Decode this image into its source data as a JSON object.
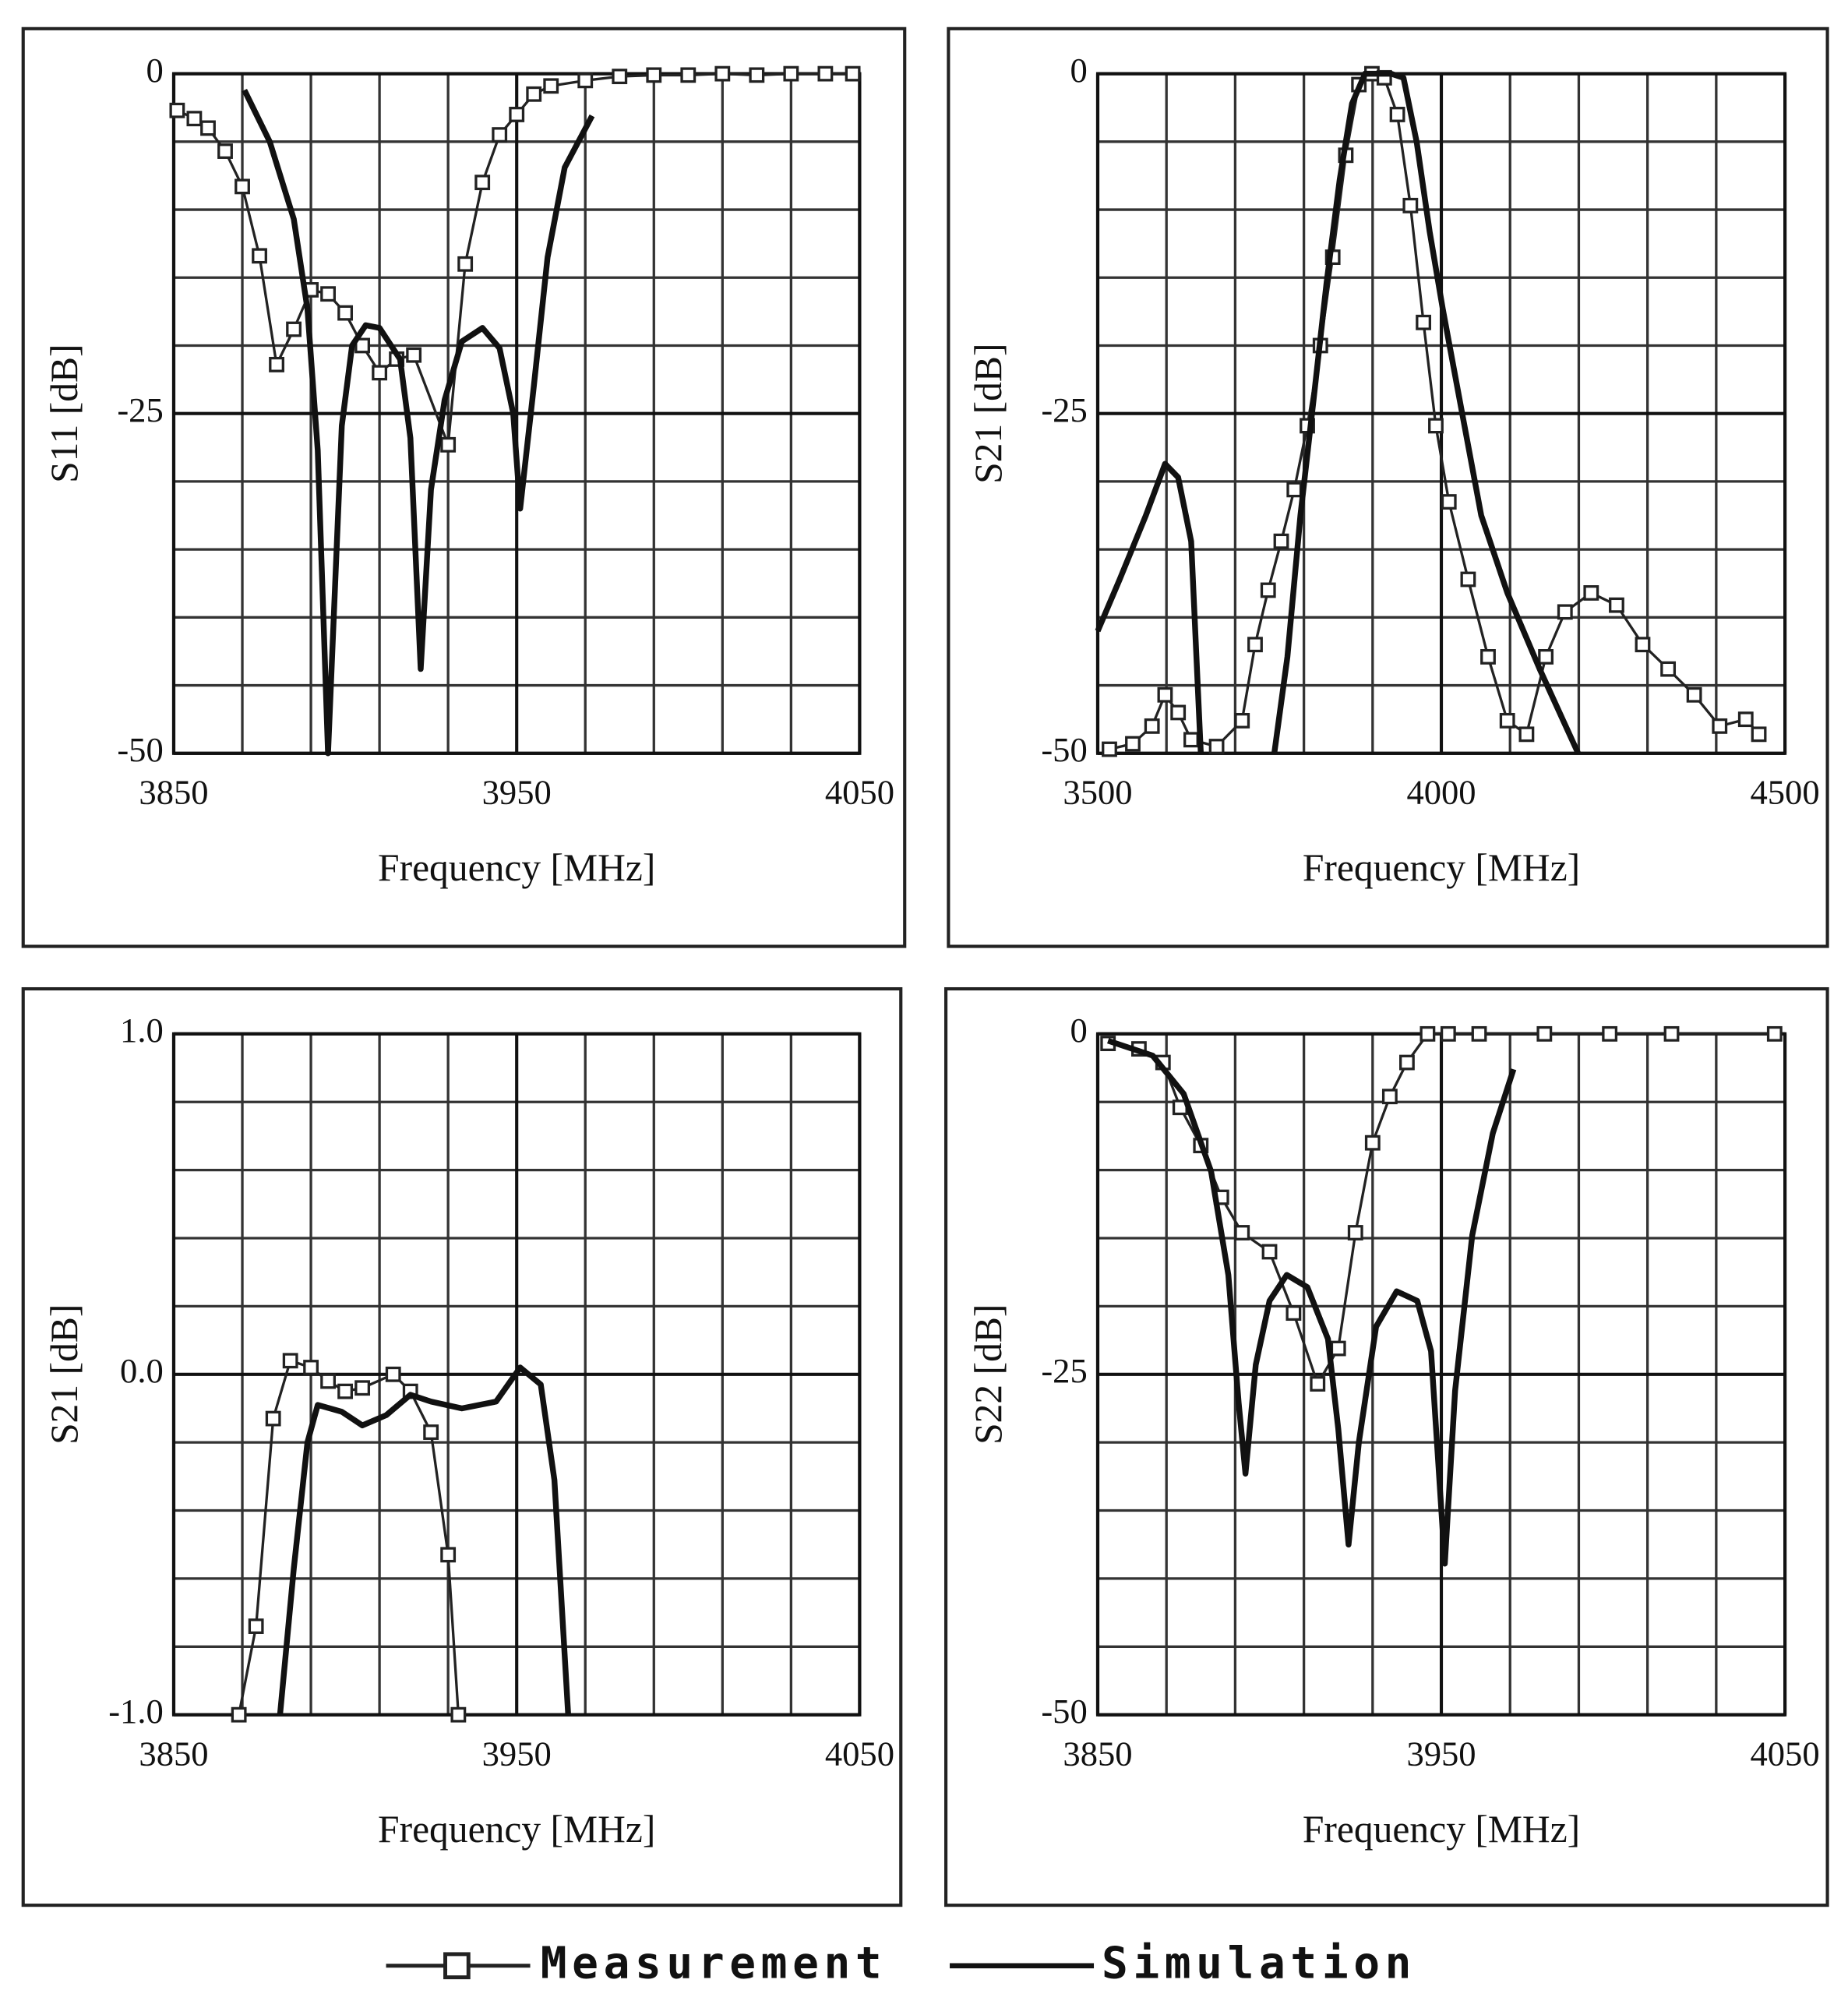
{
  "legend": [
    "Measurement",
    "Simulation"
  ],
  "chart_data": [
    {
      "type": "line",
      "xlabel": "Frequency [MHz]",
      "ylabel": "S11 [dB]",
      "xlim": [
        3850,
        4050
      ],
      "xticks": [
        3850,
        3950,
        4050
      ],
      "ylim": [
        -50,
        0
      ],
      "yticks": [
        0,
        -25,
        -50
      ],
      "grid": true,
      "series": [
        {
          "color": "#222222",
          "marker": "square",
          "x": [
            3851,
            3856,
            3860,
            3865,
            3870,
            3875,
            3880,
            3885,
            3890,
            3895,
            3900,
            3905,
            3910,
            3915,
            3920,
            3930,
            3935,
            3940,
            3945,
            3950,
            3955,
            3960,
            3970,
            3980,
            3990,
            4000,
            4010,
            4020,
            4030,
            4040,
            4048
          ],
          "values": [
            -2.7,
            -3.3,
            -4,
            -5.7,
            -8.3,
            -13.4,
            -21.4,
            -18.8,
            -15.9,
            -16.2,
            -17.6,
            -20,
            -22,
            -21,
            -20.7,
            -27.3,
            -14,
            -8,
            -4.5,
            -3,
            -1.5,
            -0.9,
            -0.5,
            -0.2,
            -0.1,
            -0.1,
            0,
            -0.1,
            0,
            0,
            0
          ]
        },
        {
          "color": "#111111",
          "marker": "none",
          "x": [
            3870.6,
            3878,
            3885,
            3889,
            3892,
            3895,
            3899,
            3902,
            3906,
            3910,
            3916,
            3919,
            3922,
            3925,
            3929,
            3934,
            3940,
            3945,
            3949,
            3951,
            3955,
            3959,
            3964,
            3972
          ],
          "values": [
            -1.2,
            -5,
            -10.7,
            -17.3,
            -27.7,
            -50,
            -25.9,
            -20,
            -18.5,
            -18.7,
            -21,
            -26.8,
            -43.8,
            -30.6,
            -24,
            -19.7,
            -18.7,
            -20.2,
            -25,
            -32,
            -23,
            -13.5,
            -6.9,
            -3.1
          ]
        }
      ]
    },
    {
      "type": "line",
      "xlabel": "Frequency [MHz]",
      "ylabel": "S21 [dB]",
      "xlim": [
        3500,
        4500
      ],
      "xticks": [
        3500,
        4000,
        4500
      ],
      "ylim": [
        -50,
        0
      ],
      "yticks": [
        0,
        -25,
        -50
      ],
      "grid": true,
      "series": [
        {
          "color": "#222222",
          "marker": "square",
          "x": [
            3517,
            3551,
            3579,
            3598,
            3617,
            3636,
            3673,
            3710,
            3729,
            3748,
            3767,
            3786,
            3805,
            3824,
            3842,
            3861,
            3880,
            3899,
            3917,
            3936,
            3955,
            3974,
            3992,
            4011,
            4039,
            4068,
            4096,
            4124,
            4152,
            4180,
            4218,
            4255,
            4293,
            4330,
            4368,
            4405,
            4443,
            4462
          ],
          "values": [
            -49.7,
            -49.3,
            -48,
            -45.7,
            -47,
            -49,
            -49.5,
            -47.6,
            -42,
            -38,
            -34.4,
            -30.6,
            -25.9,
            -20,
            -13.5,
            -6,
            -0.8,
            0,
            -0.3,
            -3,
            -9.7,
            -18.3,
            -25.9,
            -31.5,
            -37.2,
            -42.9,
            -47.6,
            -48.6,
            -42.9,
            -39.6,
            -38.2,
            -39.1,
            -42,
            -43.8,
            -45.7,
            -48,
            -47.5,
            -48.6
          ]
        },
        {
          "color": "#111111",
          "marker": "none",
          "x": [
            3500,
            3532,
            3570,
            3598,
            3617,
            3636,
            3650,
            null,
            3757,
            3776,
            3795,
            3814,
            3833,
            3852,
            3870,
            3889,
            3927,
            3945,
            3964,
            3983,
            4002,
            4030,
            4058,
            4096,
            4143,
            4199
          ],
          "values": [
            -41,
            -37.2,
            -32.5,
            -28.7,
            -29.7,
            -34.4,
            -50,
            null,
            -50,
            -42.9,
            -32.5,
            -24,
            -15.4,
            -7.8,
            -2.2,
            0,
            0,
            -0.3,
            -5,
            -11.6,
            -17.3,
            -24.9,
            -32.5,
            -38.2,
            -43.8,
            -50
          ]
        }
      ]
    },
    {
      "type": "line",
      "xlabel": "Frequency [MHz]",
      "ylabel": "S21 [dB]",
      "xlim": [
        3850,
        4050
      ],
      "xticks": [
        3850,
        3950,
        4050
      ],
      "ylim": [
        -1,
        1
      ],
      "yticks": [
        {
          "value": 1,
          "label": "1.0"
        },
        {
          "value": 0,
          "label": "0.0"
        },
        {
          "value": -1,
          "label": "-1.0"
        }
      ],
      "grid": true,
      "series": [
        {
          "color": "#222222",
          "marker": "square",
          "x": [
            3869,
            3874,
            3879,
            3884,
            3890,
            3895,
            3900,
            3905,
            3914,
            3919,
            3925,
            3930,
            3933
          ],
          "values": [
            -1,
            -0.74,
            -0.13,
            0.04,
            0.02,
            -0.02,
            -0.05,
            -0.04,
            0,
            -0.05,
            -0.17,
            -0.53,
            -1
          ]
        },
        {
          "color": "#111111",
          "marker": "none",
          "x": [
            3881,
            3885,
            3889,
            3892,
            3899,
            3905,
            3912,
            3919,
            3925,
            3934,
            3944,
            3951,
            3957,
            3961,
            3965
          ],
          "values": [
            -1,
            -0.57,
            -0.2,
            -0.09,
            -0.11,
            -0.15,
            -0.12,
            -0.06,
            -0.08,
            -0.1,
            -0.08,
            0.02,
            -0.03,
            -0.31,
            -1
          ]
        }
      ]
    },
    {
      "type": "line",
      "xlabel": "Frequency [MHz]",
      "ylabel": "S22 [dB]",
      "xlim": [
        3850,
        4050
      ],
      "xticks": [
        3850,
        3950,
        4050
      ],
      "ylim": [
        -50,
        0
      ],
      "yticks": [
        0,
        -25,
        -50
      ],
      "grid": true,
      "series": [
        {
          "color": "#222222",
          "marker": "square",
          "x": [
            3853,
            3862,
            3869,
            3874,
            3880,
            3886,
            3892,
            3900,
            3907,
            3914,
            3920,
            3925,
            3930,
            3935,
            3940,
            3946,
            3952,
            3961,
            3980,
            3999,
            4017,
            4047
          ],
          "values": [
            -0.7,
            -1.1,
            -2.1,
            -5.4,
            -8.2,
            -12,
            -14.6,
            -16,
            -20.5,
            -25.7,
            -23.1,
            -14.6,
            -8,
            -4.6,
            -2.1,
            0,
            0,
            0,
            0,
            0,
            0,
            0
          ]
        },
        {
          "color": "#111111",
          "marker": "none",
          "x": [
            3853,
            3866,
            3875,
            3883,
            3888,
            3891,
            3893,
            3896,
            3900,
            3905,
            3911,
            3917,
            3920,
            3923,
            3926,
            3931,
            3937,
            3943,
            3947,
            3951,
            3954,
            3959,
            3965,
            3971
          ],
          "values": [
            -0.5,
            -1.6,
            -4.4,
            -10.1,
            -17.7,
            -27.1,
            -32.3,
            -24.3,
            -19.6,
            -17.7,
            -18.6,
            -22.4,
            -29,
            -37.5,
            -30,
            -21.5,
            -18.9,
            -19.6,
            -23.3,
            -38.9,
            -26.2,
            -14.8,
            -7.3,
            -2.6
          ]
        }
      ]
    }
  ]
}
